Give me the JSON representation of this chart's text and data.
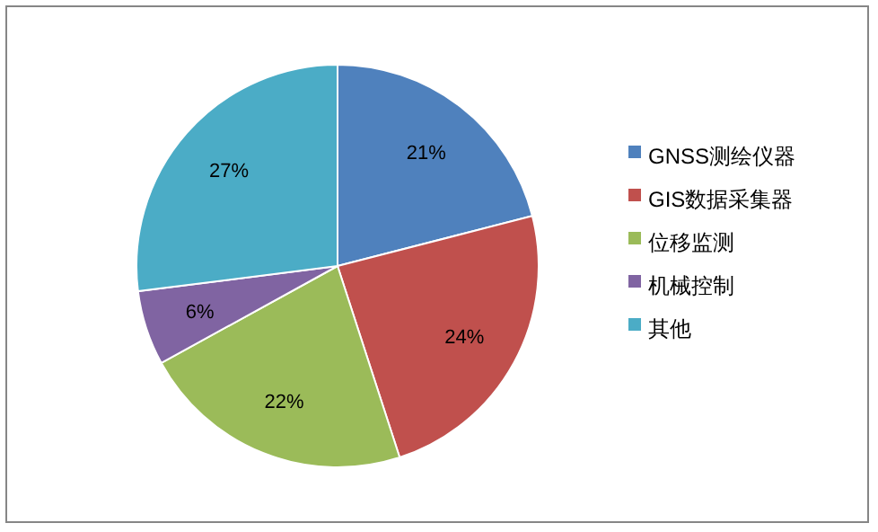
{
  "chart_data": {
    "type": "pie",
    "categories": [
      "GNSS测绘仪器",
      "GIS数据采集器",
      "位移监测",
      "机械控制",
      "其他"
    ],
    "values": [
      21,
      24,
      22,
      6,
      27
    ],
    "colors": [
      "#4f81bd",
      "#c0504d",
      "#9bbb59",
      "#8064a2",
      "#4bacc6"
    ],
    "value_labels": [
      "21%",
      "24%",
      "22%",
      "6%",
      "27%"
    ],
    "legend": "right"
  }
}
